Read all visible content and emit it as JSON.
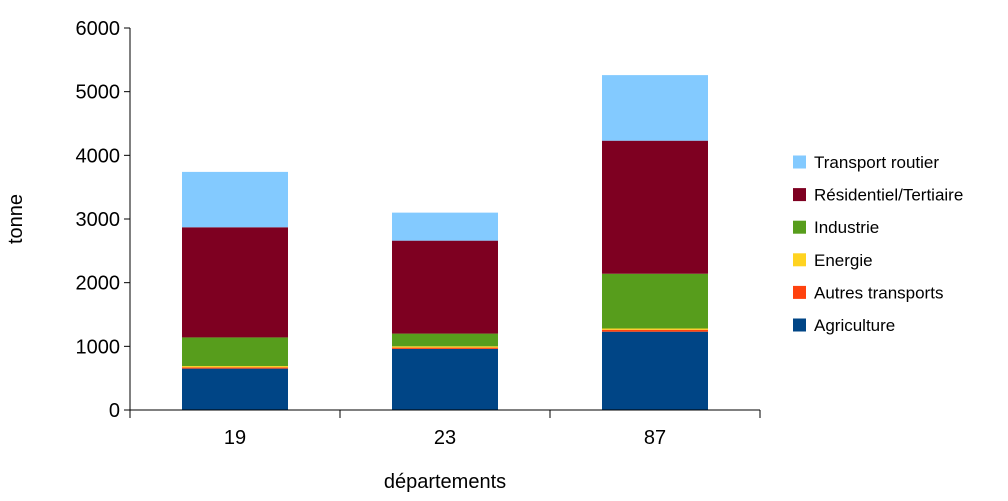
{
  "chart_data": {
    "type": "bar",
    "stacked": true,
    "title": "",
    "xlabel": "départements",
    "ylabel": "tonne",
    "categories": [
      "19",
      "23",
      "87"
    ],
    "ylim": [
      0,
      6000
    ],
    "yticks": [
      0,
      1000,
      2000,
      3000,
      4000,
      5000,
      6000
    ],
    "grid": false,
    "legend_position": "right",
    "series": [
      {
        "name": "Agriculture",
        "color": "#004586",
        "values": [
          650,
          960,
          1230
        ]
      },
      {
        "name": "Autres transports",
        "color": "#ff420e",
        "values": [
          20,
          20,
          30
        ]
      },
      {
        "name": "Energie",
        "color": "#ffd320",
        "values": [
          20,
          20,
          20
        ]
      },
      {
        "name": "Industrie",
        "color": "#579d1c",
        "values": [
          450,
          200,
          860
        ]
      },
      {
        "name": "Résidentiel/Tertiaire",
        "color": "#7e0021",
        "values": [
          1730,
          1460,
          2090
        ]
      },
      {
        "name": "Transport routier",
        "color": "#83caff",
        "values": [
          870,
          440,
          1030
        ]
      }
    ]
  }
}
